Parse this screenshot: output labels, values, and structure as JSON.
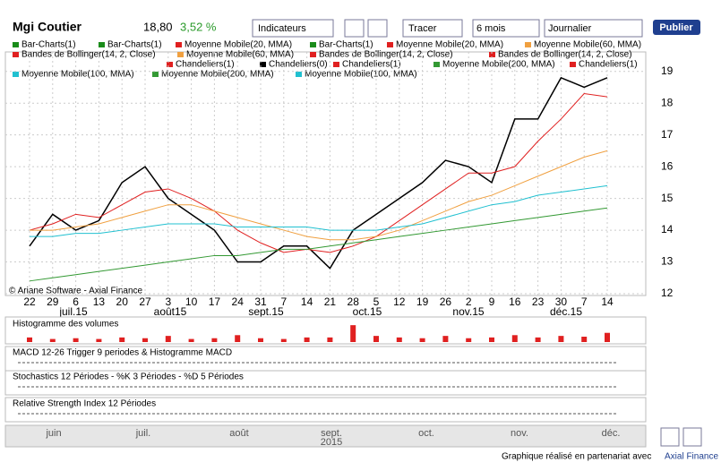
{
  "toolbar": {
    "name": "Mgi Coutier",
    "price": "18,80",
    "change": "3,52 %",
    "indicators": "Indicateurs",
    "draw": "Tracer",
    "period": "6 mois",
    "interval": "Journalier",
    "publish": "Publier"
  },
  "chart_data": [
    {
      "type": "line",
      "legend": [
        {
          "name": "Bar-Charts(1)",
          "color": "#1a8c1a"
        },
        {
          "name": "Bar-Charts(1)",
          "color": "#1a8c1a"
        },
        {
          "name": "Moyenne Mobile(20, MMA)",
          "color": "#e02020"
        },
        {
          "name": "Bar-Charts(1)",
          "color": "#1a8c1a"
        },
        {
          "name": "Moyenne Mobile(20, MMA)",
          "color": "#e02020"
        },
        {
          "name": "Moyenne Mobile(60, MMA)",
          "color": "#f0a040"
        },
        {
          "name": "Bandes de Bollinger(14, 2, Close)",
          "color": "#e02020"
        },
        {
          "name": "Moyenne Mobile(60, MMA)",
          "color": "#f0a040"
        },
        {
          "name": "Bandes de Bollinger(14, 2, Close)",
          "color": "#e02020"
        },
        {
          "name": "Bandes de Bollinger(14, 2, Close)",
          "color": "#e02020"
        },
        {
          "name": "Chandeliers(1)",
          "color": "#e02020"
        },
        {
          "name": "Chandeliers(0)",
          "color": "#000000"
        },
        {
          "name": "Chandeliers(1)",
          "color": "#e02020"
        },
        {
          "name": "Moyenne Mobile(200, MMA)",
          "color": "#339933"
        },
        {
          "name": "Chandeliers(1)",
          "color": "#e02020"
        },
        {
          "name": "Moyenne Mobile(100, MMA)",
          "color": "#20c0d0"
        },
        {
          "name": "Moyenne Mobile(200, MMA)",
          "color": "#339933"
        },
        {
          "name": "Moyenne Mobile(100, MMA)",
          "color": "#20c0d0"
        }
      ],
      "categories": [
        "22",
        "29",
        "6",
        "13",
        "20",
        "27",
        "3",
        "10",
        "17",
        "24",
        "31",
        "7",
        "14",
        "21",
        "28",
        "5",
        "12",
        "19",
        "26",
        "2",
        "9",
        "16",
        "23",
        "30",
        "7",
        "14"
      ],
      "month_labels": [
        "juil.15",
        "août15",
        "sept.15",
        "oct.15",
        "nov.15",
        "déc.15"
      ],
      "series": [
        {
          "color": "#000000",
          "values": [
            13.5,
            14.5,
            14,
            14.3,
            15.5,
            16,
            15,
            14.5,
            14,
            13,
            13,
            13.5,
            13.5,
            12.8,
            14,
            14.5,
            15,
            15.5,
            16.2,
            16,
            15.5,
            17.5,
            17.5,
            18.8,
            18.5,
            18.8
          ]
        },
        {
          "color": "#e02020",
          "values": [
            14,
            14.2,
            14.5,
            14.4,
            14.8,
            15.2,
            15.3,
            15,
            14.6,
            14,
            13.6,
            13.3,
            13.4,
            13.3,
            13.5,
            13.8,
            14.3,
            14.8,
            15.3,
            15.8,
            15.8,
            16,
            16.8,
            17.5,
            18.3,
            18.2
          ]
        },
        {
          "color": "#f0a040",
          "values": [
            14,
            14,
            14.1,
            14.2,
            14.4,
            14.6,
            14.8,
            14.8,
            14.6,
            14.4,
            14.2,
            14,
            13.8,
            13.7,
            13.7,
            13.8,
            14,
            14.3,
            14.6,
            14.9,
            15.1,
            15.4,
            15.7,
            16,
            16.3,
            16.5
          ]
        },
        {
          "color": "#20c0d0",
          "values": [
            13.8,
            13.8,
            13.9,
            13.9,
            14,
            14.1,
            14.2,
            14.2,
            14.2,
            14.1,
            14.1,
            14.1,
            14.1,
            14,
            14,
            14,
            14.1,
            14.2,
            14.4,
            14.6,
            14.8,
            14.9,
            15.1,
            15.2,
            15.3,
            15.4
          ]
        },
        {
          "color": "#339933",
          "values": [
            12.4,
            12.5,
            12.6,
            12.7,
            12.8,
            12.9,
            13,
            13.1,
            13.2,
            13.2,
            13.3,
            13.4,
            13.4,
            13.5,
            13.6,
            13.7,
            13.8,
            13.9,
            14,
            14.1,
            14.2,
            14.3,
            14.4,
            14.5,
            14.6,
            14.7
          ]
        }
      ],
      "ylim": [
        12,
        19.5
      ],
      "yticks": [
        12,
        13,
        14,
        15,
        16,
        17,
        18,
        19
      ],
      "annotation": "© Ariane Software - Axial Finance"
    },
    {
      "type": "bar",
      "title": "Histogramme des volumes",
      "color": "#e02020",
      "ylim": [
        0,
        140000
      ],
      "values": [
        30000,
        20000,
        25000,
        20000,
        30000,
        25000,
        40000,
        20000,
        25000,
        45000,
        25000,
        20000,
        30000,
        30000,
        110000,
        40000,
        30000,
        25000,
        40000,
        25000,
        30000,
        45000,
        30000,
        40000,
        35000,
        60000
      ]
    }
  ],
  "panels": [
    "MACD 12-26  Trigger 9 periodes & Histogramme MACD",
    "Stochastics 12 Périodes  - %K 3 Périodes  - %D 5 Périodes",
    "Relative Strength Index 12 Périodes"
  ],
  "navigator": [
    "juin",
    "juil.",
    "août",
    "sept.",
    "2015",
    "oct.",
    "nov.",
    "déc."
  ],
  "footer": {
    "text": "Graphique réalisé en partenariat avec",
    "link": "Axial Finance"
  }
}
